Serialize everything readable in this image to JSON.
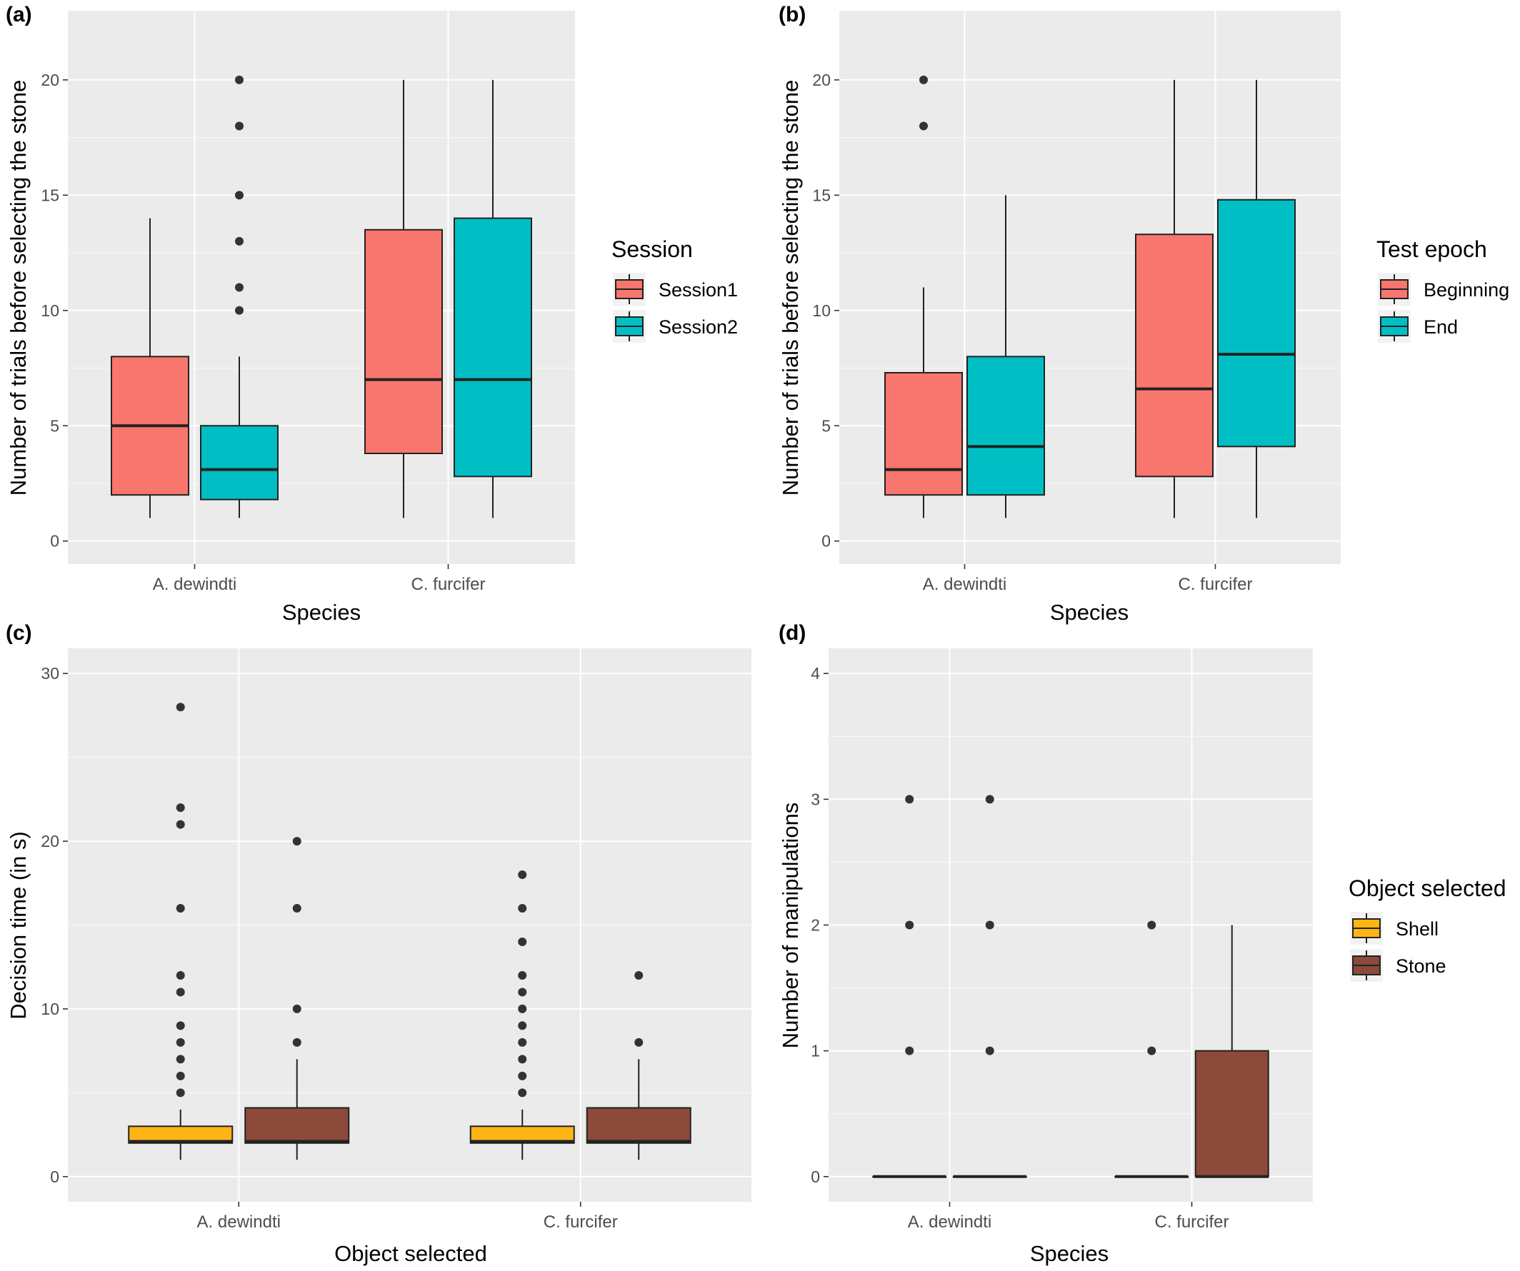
{
  "figure": {
    "panel_labels": [
      "(a)",
      "(b)",
      "(c)",
      "(d)"
    ]
  },
  "chart_data": [
    {
      "type": "boxplot",
      "panel": "(a)",
      "xlabel": "Species",
      "ylabel": "Number of trials before selecting the stone",
      "categories": [
        "A. dewindti",
        "C. furcifer"
      ],
      "ylim": [
        -1,
        23
      ],
      "yticks": [
        0,
        5,
        10,
        15,
        20
      ],
      "grid": true,
      "legend": {
        "title": "Session",
        "position": "right"
      },
      "series": [
        {
          "name": "Session1",
          "color": "#F8766D",
          "boxes": [
            {
              "category": "A. dewindti",
              "whisker_low": 1,
              "q1": 2,
              "median": 5,
              "q3": 8,
              "whisker_high": 14,
              "outliers": []
            },
            {
              "category": "C. furcifer",
              "whisker_low": 1,
              "q1": 3.8,
              "median": 7,
              "q3": 13.5,
              "whisker_high": 20,
              "outliers": []
            }
          ]
        },
        {
          "name": "Session2",
          "color": "#00BFC4",
          "boxes": [
            {
              "category": "A. dewindti",
              "whisker_low": 1,
              "q1": 1.8,
              "median": 3.1,
              "q3": 5,
              "whisker_high": 8,
              "outliers": [
                10,
                11,
                13,
                15,
                18,
                20
              ]
            },
            {
              "category": "C. furcifer",
              "whisker_low": 1,
              "q1": 2.8,
              "median": 7,
              "q3": 14,
              "whisker_high": 20,
              "outliers": []
            }
          ]
        }
      ]
    },
    {
      "type": "boxplot",
      "panel": "(b)",
      "xlabel": "Species",
      "ylabel": "Number of trials before selecting the stone",
      "categories": [
        "A. dewindti",
        "C. furcifer"
      ],
      "ylim": [
        -1,
        23
      ],
      "yticks": [
        0,
        5,
        10,
        15,
        20
      ],
      "grid": true,
      "legend": {
        "title": "Test epoch",
        "position": "right"
      },
      "series": [
        {
          "name": "Beginning",
          "color": "#F8766D",
          "boxes": [
            {
              "category": "A. dewindti",
              "whisker_low": 1,
              "q1": 2,
              "median": 3.1,
              "q3": 7.3,
              "whisker_high": 11,
              "outliers": [
                18,
                20
              ]
            },
            {
              "category": "C. furcifer",
              "whisker_low": 1,
              "q1": 2.8,
              "median": 6.6,
              "q3": 13.3,
              "whisker_high": 20,
              "outliers": []
            }
          ]
        },
        {
          "name": "End",
          "color": "#00BFC4",
          "boxes": [
            {
              "category": "A. dewindti",
              "whisker_low": 1,
              "q1": 2,
              "median": 4.1,
              "q3": 8,
              "whisker_high": 15,
              "outliers": []
            },
            {
              "category": "C. furcifer",
              "whisker_low": 1,
              "q1": 4.1,
              "median": 8.1,
              "q3": 14.8,
              "whisker_high": 20,
              "outliers": []
            }
          ]
        }
      ]
    },
    {
      "type": "boxplot",
      "panel": "(c)",
      "xlabel": "Object selected",
      "ylabel": "Decision time (in s)",
      "categories": [
        "A. dewindti",
        "C. furcifer"
      ],
      "ylim": [
        -1.5,
        31.5
      ],
      "yticks": [
        0,
        10,
        20,
        30
      ],
      "grid": true,
      "legend": null,
      "series": [
        {
          "name": "Shell",
          "color": "#FDB515",
          "boxes": [
            {
              "category": "A. dewindti",
              "whisker_low": 1,
              "q1": 2,
              "median": 2.1,
              "q3": 3,
              "whisker_high": 4,
              "outliers": [
                5,
                6,
                7,
                8,
                9,
                11,
                12,
                16,
                21,
                22,
                28
              ]
            },
            {
              "category": "C. furcifer",
              "whisker_low": 1,
              "q1": 2,
              "median": 2.1,
              "q3": 3,
              "whisker_high": 4,
              "outliers": [
                5,
                6,
                7,
                8,
                9,
                10,
                11,
                12,
                14,
                16,
                18
              ]
            }
          ]
        },
        {
          "name": "Stone",
          "color": "#8B4A3A",
          "boxes": [
            {
              "category": "A. dewindti",
              "whisker_low": 1,
              "q1": 2,
              "median": 2.1,
              "q3": 4.1,
              "whisker_high": 7,
              "outliers": [
                8,
                10,
                16,
                20
              ]
            },
            {
              "category": "C. furcifer",
              "whisker_low": 1,
              "q1": 2,
              "median": 2.1,
              "q3": 4.1,
              "whisker_high": 7,
              "outliers": [
                8,
                12
              ]
            }
          ]
        }
      ]
    },
    {
      "type": "boxplot",
      "panel": "(d)",
      "xlabel": "Species",
      "ylabel": "Number of manipulations",
      "categories": [
        "A. dewindti",
        "C. furcifer"
      ],
      "ylim": [
        -0.2,
        4.2
      ],
      "yticks": [
        0,
        1,
        2,
        3,
        4
      ],
      "grid": true,
      "legend": {
        "title": "Object selected",
        "position": "right"
      },
      "series": [
        {
          "name": "Shell",
          "color": "#FDB515",
          "boxes": [
            {
              "category": "A. dewindti",
              "whisker_low": 0,
              "q1": 0,
              "median": 0,
              "q3": 0,
              "whisker_high": 0,
              "outliers": [
                1,
                2,
                3
              ]
            },
            {
              "category": "C. furcifer",
              "whisker_low": 0,
              "q1": 0,
              "median": 0,
              "q3": 0,
              "whisker_high": 0,
              "outliers": [
                1,
                2
              ]
            }
          ]
        },
        {
          "name": "Stone",
          "color": "#8B4A3A",
          "boxes": [
            {
              "category": "A. dewindti",
              "whisker_low": 0,
              "q1": 0,
              "median": 0,
              "q3": 0,
              "whisker_high": 0,
              "outliers": [
                1,
                2,
                3
              ]
            },
            {
              "category": "C. furcifer",
              "whisker_low": 0,
              "q1": 0,
              "median": 0,
              "q3": 1,
              "whisker_high": 2,
              "outliers": []
            }
          ]
        }
      ]
    }
  ]
}
